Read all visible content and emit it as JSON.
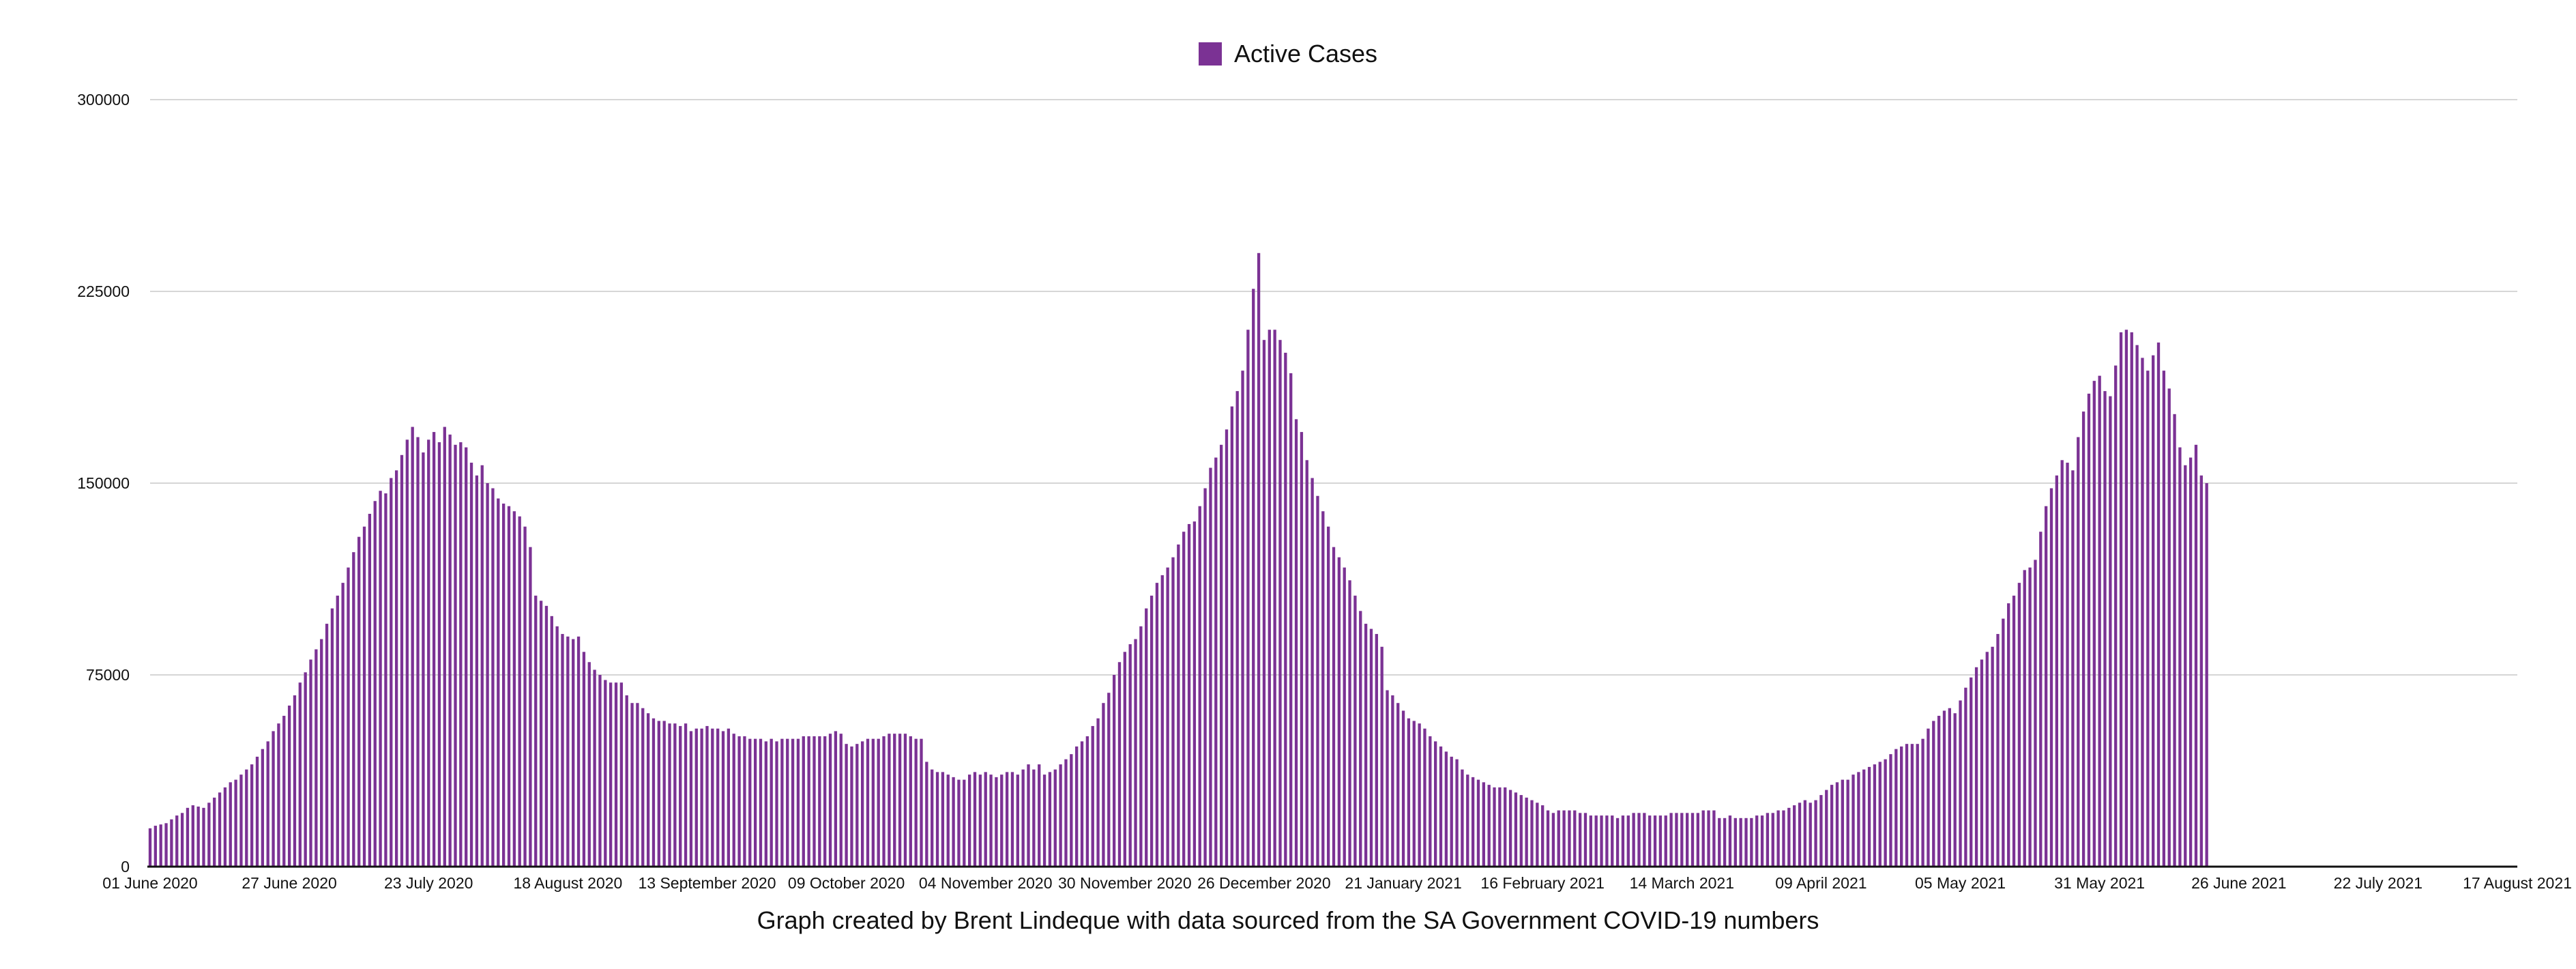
{
  "chart_data": {
    "type": "bar",
    "title": "",
    "xlabel": "",
    "ylabel": "",
    "caption": "Graph created by Brent Lindeque with data sourced from the SA Government COVID-19 numbers",
    "legend": {
      "placement": "top-center",
      "entries": [
        "Active Cases"
      ]
    },
    "grid": true,
    "ylim": [
      0,
      300000
    ],
    "y_ticks": [
      "0",
      "75000",
      "150000",
      "225000",
      "300000"
    ],
    "x_ticks": [
      "01 June 2020",
      "27 June 2020",
      "23 July 2020",
      "18 August 2020",
      "13 September 2020",
      "09 October 2020",
      "04 November 2020",
      "30 November 2020",
      "26 December 2020",
      "21 January 2021",
      "16 February 2021",
      "14 March 2021",
      "09 April 2021",
      "05 May 2021",
      "31 May 2021",
      "26 June 2021",
      "22 July 2021",
      "17 August 2021"
    ],
    "x_start": "2020-06-01",
    "x_end": "2021-08-17",
    "series": [
      {
        "name": "Active Cases",
        "color": "#7b3294",
        "values": [
          15000,
          16000,
          16500,
          17000,
          18500,
          20000,
          21000,
          23000,
          24000,
          23500,
          23000,
          25000,
          27000,
          29000,
          31000,
          33000,
          34000,
          36000,
          38000,
          40000,
          43000,
          46000,
          49000,
          53000,
          56000,
          59000,
          63000,
          67000,
          72000,
          76000,
          81000,
          85000,
          89000,
          95000,
          101000,
          106000,
          111000,
          117000,
          123000,
          129000,
          133000,
          138000,
          143000,
          147000,
          146000,
          152000,
          155000,
          161000,
          167000,
          172000,
          168000,
          162000,
          167000,
          170000,
          166000,
          172000,
          169000,
          165000,
          166000,
          164000,
          158000,
          153000,
          157000,
          150000,
          148000,
          144000,
          142000,
          141000,
          139000,
          137000,
          133000,
          125000,
          106000,
          104000,
          102000,
          98000,
          94000,
          91000,
          90000,
          89000,
          90000,
          84000,
          80000,
          77000,
          75000,
          73000,
          72000,
          72000,
          72000,
          67000,
          64000,
          64000,
          62000,
          60000,
          58000,
          57000,
          57000,
          56000,
          56000,
          55000,
          56000,
          53000,
          54000,
          54000,
          55000,
          54000,
          54000,
          53000,
          54000,
          52000,
          51000,
          51000,
          50000,
          50000,
          50000,
          49000,
          50000,
          49000,
          50000,
          50000,
          50000,
          50000,
          51000,
          51000,
          51000,
          51000,
          51000,
          52000,
          53000,
          52000,
          48000,
          47000,
          48000,
          49000,
          50000,
          50000,
          50000,
          51000,
          52000,
          52000,
          52000,
          52000,
          51000,
          50000,
          50000,
          41000,
          38000,
          37000,
          37000,
          36000,
          35000,
          34000,
          34000,
          36000,
          37000,
          36000,
          37000,
          36000,
          35000,
          36000,
          37000,
          37000,
          36000,
          38000,
          40000,
          38000,
          40000,
          36000,
          37000,
          38000,
          40000,
          42000,
          44000,
          47000,
          49000,
          51000,
          55000,
          58000,
          64000,
          68000,
          75000,
          80000,
          84000,
          87000,
          89000,
          94000,
          101000,
          106000,
          111000,
          114000,
          117000,
          121000,
          126000,
          131000,
          134000,
          135000,
          141000,
          148000,
          156000,
          160000,
          165000,
          171000,
          180000,
          186000,
          194000,
          210000,
          226000,
          240000,
          206000,
          210000,
          210000,
          206000,
          201000,
          193000,
          175000,
          170000,
          159000,
          152000,
          145000,
          139000,
          133000,
          125000,
          121000,
          117000,
          112000,
          106000,
          100000,
          95000,
          93000,
          91000,
          86000,
          69000,
          67000,
          64000,
          61000,
          58000,
          57000,
          56000,
          54000,
          51000,
          49000,
          47000,
          45000,
          43000,
          42000,
          38000,
          36000,
          35000,
          34000,
          33000,
          32000,
          31000,
          31000,
          31000,
          30000,
          29000,
          28000,
          27000,
          26000,
          25000,
          24000,
          22000,
          21000,
          22000,
          22000,
          22000,
          22000,
          21000,
          21000,
          20000,
          20000,
          20000,
          20000,
          20000,
          19000,
          20000,
          20000,
          21000,
          21000,
          21000,
          20000,
          20000,
          20000,
          20000,
          21000,
          21000,
          21000,
          21000,
          21000,
          21000,
          22000,
          22000,
          22000,
          19000,
          19000,
          20000,
          19000,
          19000,
          19000,
          19000,
          20000,
          20000,
          21000,
          21000,
          22000,
          22000,
          23000,
          24000,
          25000,
          26000,
          25000,
          26000,
          28000,
          30000,
          32000,
          33000,
          34000,
          34000,
          36000,
          37000,
          38000,
          39000,
          40000,
          41000,
          42000,
          44000,
          46000,
          47000,
          48000,
          48000,
          48000,
          50000,
          54000,
          57000,
          59000,
          61000,
          62000,
          60000,
          65000,
          70000,
          74000,
          78000,
          81000,
          84000,
          86000,
          91000,
          97000,
          103000,
          106000,
          111000,
          116000,
          117000,
          120000,
          131000,
          141000,
          148000,
          153000,
          159000,
          158000,
          155000,
          168000,
          178000,
          185000,
          190000,
          192000,
          186000,
          184000,
          196000,
          209000,
          210000,
          209000,
          204000,
          199000,
          194000,
          200000,
          205000,
          194000,
          187000,
          177000,
          164000,
          157000,
          160000,
          165000,
          153000,
          150000
        ]
      }
    ]
  }
}
